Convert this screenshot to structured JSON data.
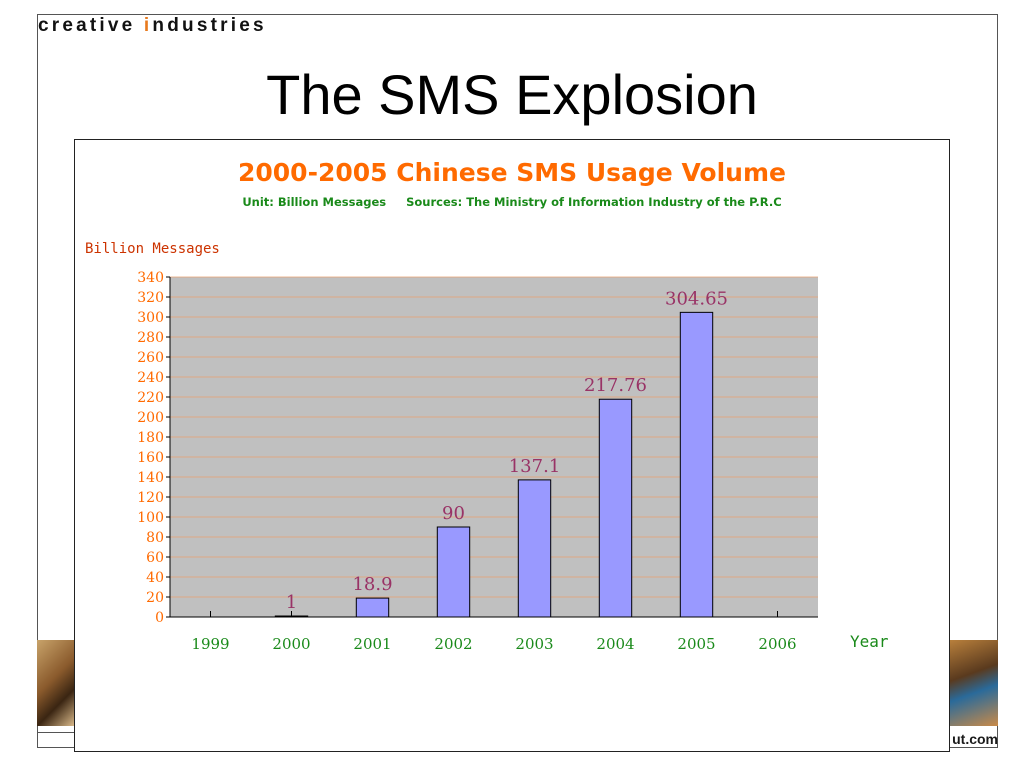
{
  "slide": {
    "brand_part1": "creative ",
    "brand_accent": "i",
    "brand_part2": "ndustries",
    "title": "The SMS Explosion",
    "footer_url": "ut.com",
    "colors": {
      "brand_accent": "#e87a1e",
      "frame": "#555555"
    }
  },
  "chart_data": {
    "type": "bar",
    "title": "2000-2005 Chinese SMS Usage Volume",
    "subtitle": "Unit: Billion Messages     Sources: The Ministry of Information Industry of the P.R.C",
    "ylabel": "Billion Messages",
    "xlabel": "Year",
    "ylim": [
      0,
      340
    ],
    "ytick_step": 20,
    "xticks": [
      "1999",
      "2000",
      "2001",
      "2002",
      "2003",
      "2004",
      "2005",
      "2006"
    ],
    "categories": [
      "2000",
      "2001",
      "2002",
      "2003",
      "2004",
      "2005"
    ],
    "values": [
      1,
      18.9,
      90,
      137.1,
      217.76,
      304.65
    ],
    "value_labels": [
      "1",
      "18.9",
      "90",
      "137.1",
      "217.76",
      "304.65"
    ],
    "grid": true,
    "colors": {
      "title": "#ff6a00",
      "subtitle": "#1a8a1a",
      "bar_fill": "#9999ff",
      "bar_stroke": "#000000",
      "plot_bg": "#c0c0c0",
      "gridline": "#e8a070",
      "ytick_label": "#ff6a00",
      "xtick_label": "#1a8a1a",
      "value_label": "#993366",
      "axis_label": "#cc3300"
    }
  }
}
